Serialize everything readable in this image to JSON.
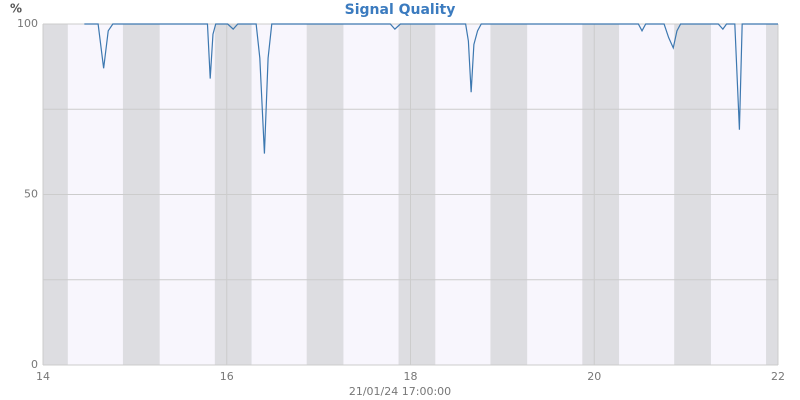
{
  "chart_data": {
    "type": "line",
    "title": "Signal Quality",
    "y_unit": "%",
    "x_label": "21/01/24 17:00:00",
    "x": [
      14.45,
      14.6,
      14.66,
      14.71,
      14.76,
      15.79,
      15.82,
      15.85,
      15.88,
      16.01,
      16.07,
      16.12,
      16.32,
      16.36,
      16.41,
      16.45,
      16.49,
      17.78,
      17.83,
      17.89,
      18.6,
      18.63,
      18.66,
      18.69,
      18.73,
      18.77,
      20.48,
      20.52,
      20.56,
      20.76,
      20.81,
      20.86,
      20.9,
      20.94,
      21.35,
      21.4,
      21.44,
      21.53,
      21.58,
      21.61,
      22
    ],
    "series": [
      {
        "name": "Signal Quality",
        "color": "#3d78b0",
        "values": [
          100,
          100,
          87,
          98,
          100,
          100,
          84,
          97,
          100,
          100,
          98.5,
          100,
          100,
          90,
          62,
          90,
          100,
          100,
          98.5,
          100,
          100,
          95,
          80,
          94,
          98,
          100,
          100,
          98,
          100,
          100,
          96,
          93,
          98,
          100,
          100,
          98.5,
          100,
          100,
          69,
          100,
          100
        ]
      }
    ],
    "xlim": [
      14,
      22
    ],
    "xticks": [
      14,
      16,
      18,
      20,
      22
    ],
    "ylim": [
      0,
      100
    ],
    "yticks": [
      0,
      50,
      100
    ],
    "minor_yticks": [
      25,
      75
    ],
    "grid": true,
    "shaded_ranges": [
      [
        14,
        14.27
      ],
      [
        14.87,
        15.27
      ],
      [
        15.87,
        16.27
      ],
      [
        16.87,
        17.27
      ],
      [
        17.87,
        18.27
      ],
      [
        18.87,
        19.27
      ],
      [
        19.87,
        20.27
      ],
      [
        20.87,
        21.27
      ],
      [
        21.87,
        22
      ]
    ],
    "plot_color": "#f8f6fd",
    "shade_color": "#dddde1"
  }
}
